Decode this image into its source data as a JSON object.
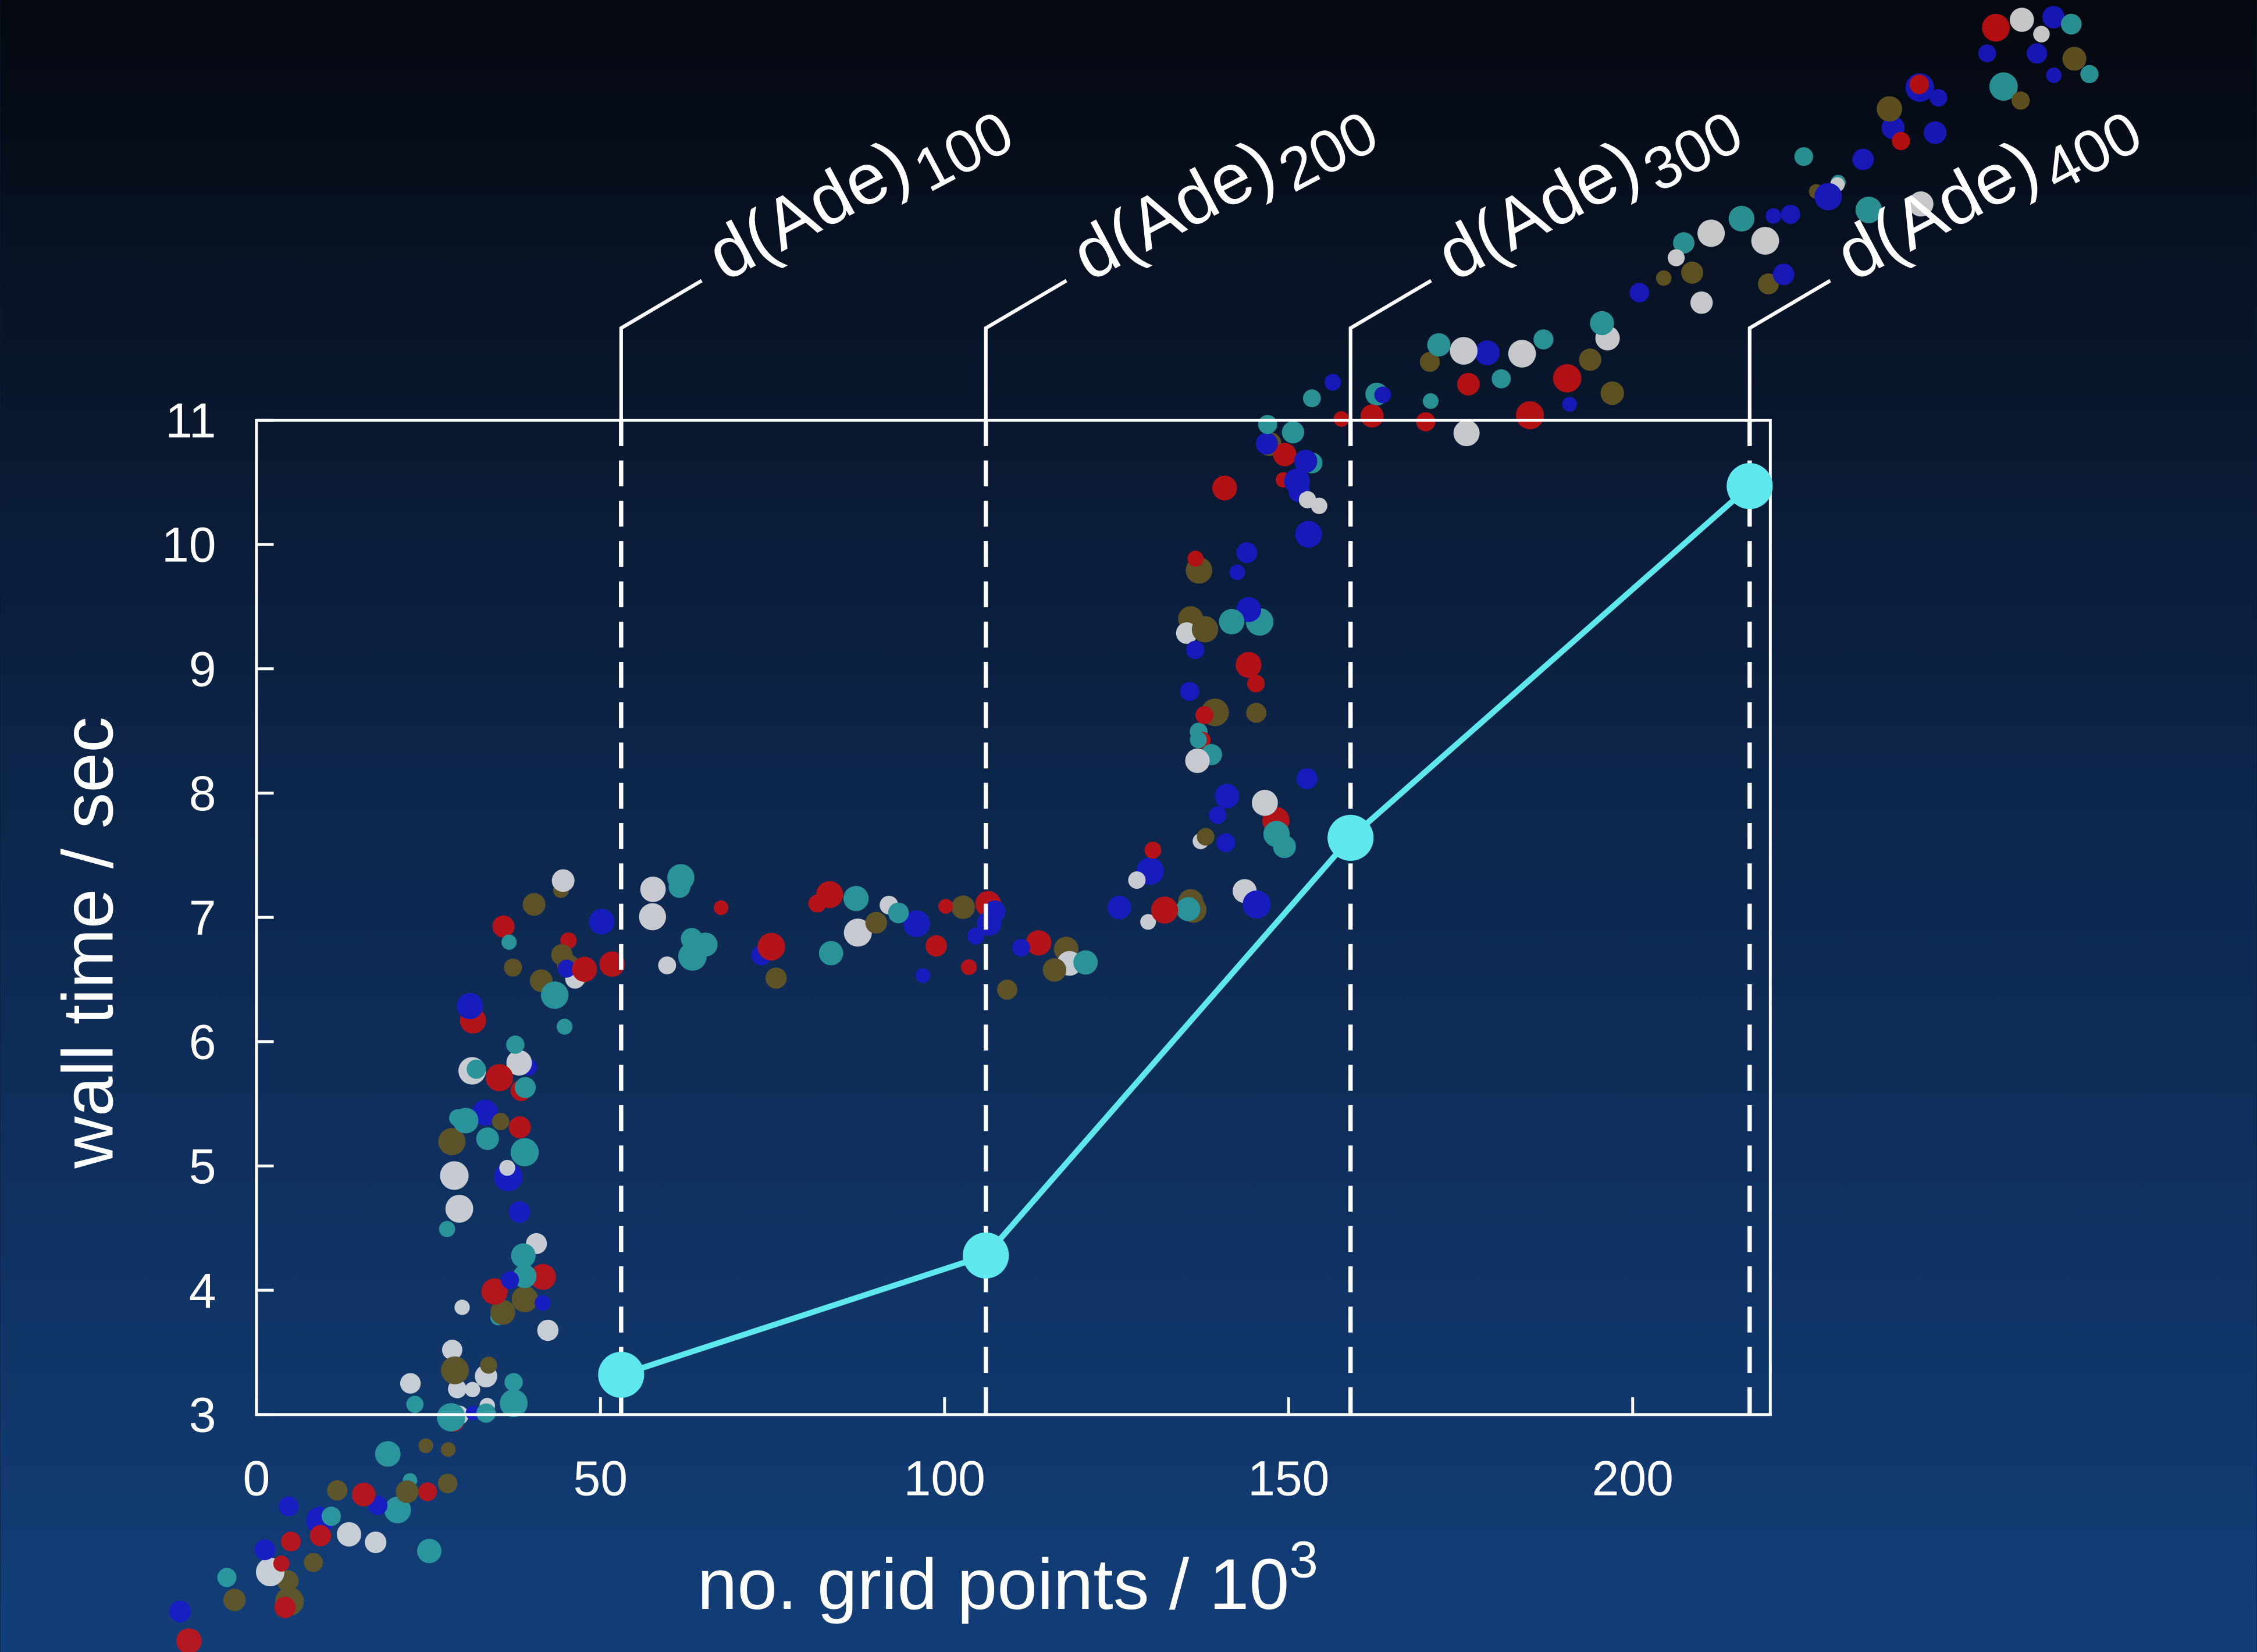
{
  "chart_data": {
    "type": "line",
    "x": [
      53,
      106,
      159,
      217
    ],
    "values": [
      3.32,
      4.28,
      7.64,
      10.47
    ],
    "color": "#5ee8ee",
    "xlim": [
      0,
      220
    ],
    "xticks": [
      0,
      50,
      100,
      150,
      200
    ],
    "ylim": [
      3,
      11
    ],
    "yticks": [
      3,
      4,
      5,
      6,
      7,
      8,
      9,
      10,
      11
    ],
    "xlabel": "no. grid points / 10",
    "xlabel_sup": "3",
    "ylabel": "wall time / sec",
    "annotations": [
      {
        "x": 53,
        "text": "d(Ade)",
        "sub": "100"
      },
      {
        "x": 106,
        "text": "d(Ade)",
        "sub": "200"
      },
      {
        "x": 159,
        "text": "d(Ade)",
        "sub": "300"
      },
      {
        "x": 217,
        "text": "d(Ade)",
        "sub": "400"
      }
    ]
  }
}
